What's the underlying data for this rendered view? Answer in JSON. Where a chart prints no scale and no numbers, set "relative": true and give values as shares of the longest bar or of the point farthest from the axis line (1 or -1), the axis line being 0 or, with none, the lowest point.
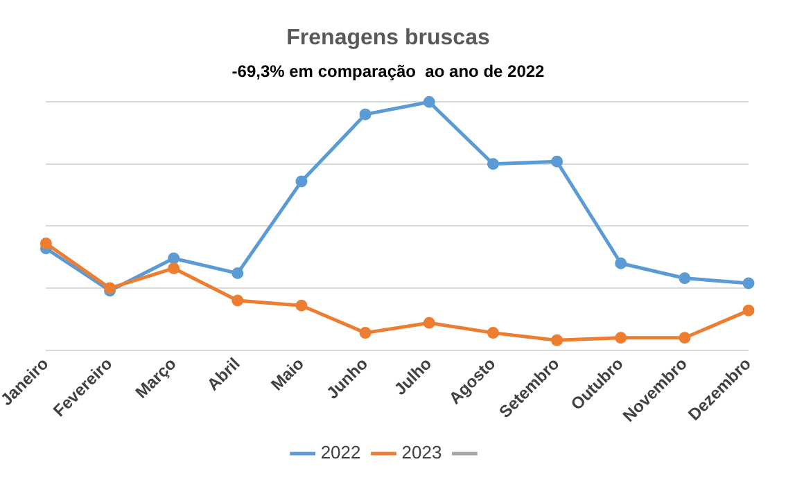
{
  "chart_data": {
    "type": "line",
    "title": "Frenagens bruscas",
    "subtitle": "-69,3% em comparação  ao ano de 2022",
    "relative": true,
    "categories": [
      "Janeiro",
      "Fevereiro",
      "Março",
      "Abril",
      "Maio",
      "Junho",
      "Julho",
      "Agosto",
      "Setembro",
      "Outubro",
      "Novembro",
      "Dezembro"
    ],
    "series": [
      {
        "name": "2022",
        "color": "#5b9bd5",
        "values": [
          0.41,
          0.24,
          0.37,
          0.31,
          0.68,
          0.95,
          1,
          0.75,
          0.76,
          0.35,
          0.29,
          0.27
        ]
      },
      {
        "name": "2023",
        "color": "#ed7d31",
        "values": [
          0.43,
          0.25,
          0.33,
          0.2,
          0.18,
          0.07,
          0.11,
          0.07,
          0.04,
          0.05,
          0.05,
          0.16
        ]
      },
      {
        "color": "#a5a5a5",
        "values": [
          null,
          null,
          null,
          null,
          null,
          null,
          null,
          null,
          null,
          null,
          null,
          null
        ]
      }
    ],
    "grid": "y",
    "legend": "bottom",
    "marker": "circle",
    "line_style": "solid"
  }
}
